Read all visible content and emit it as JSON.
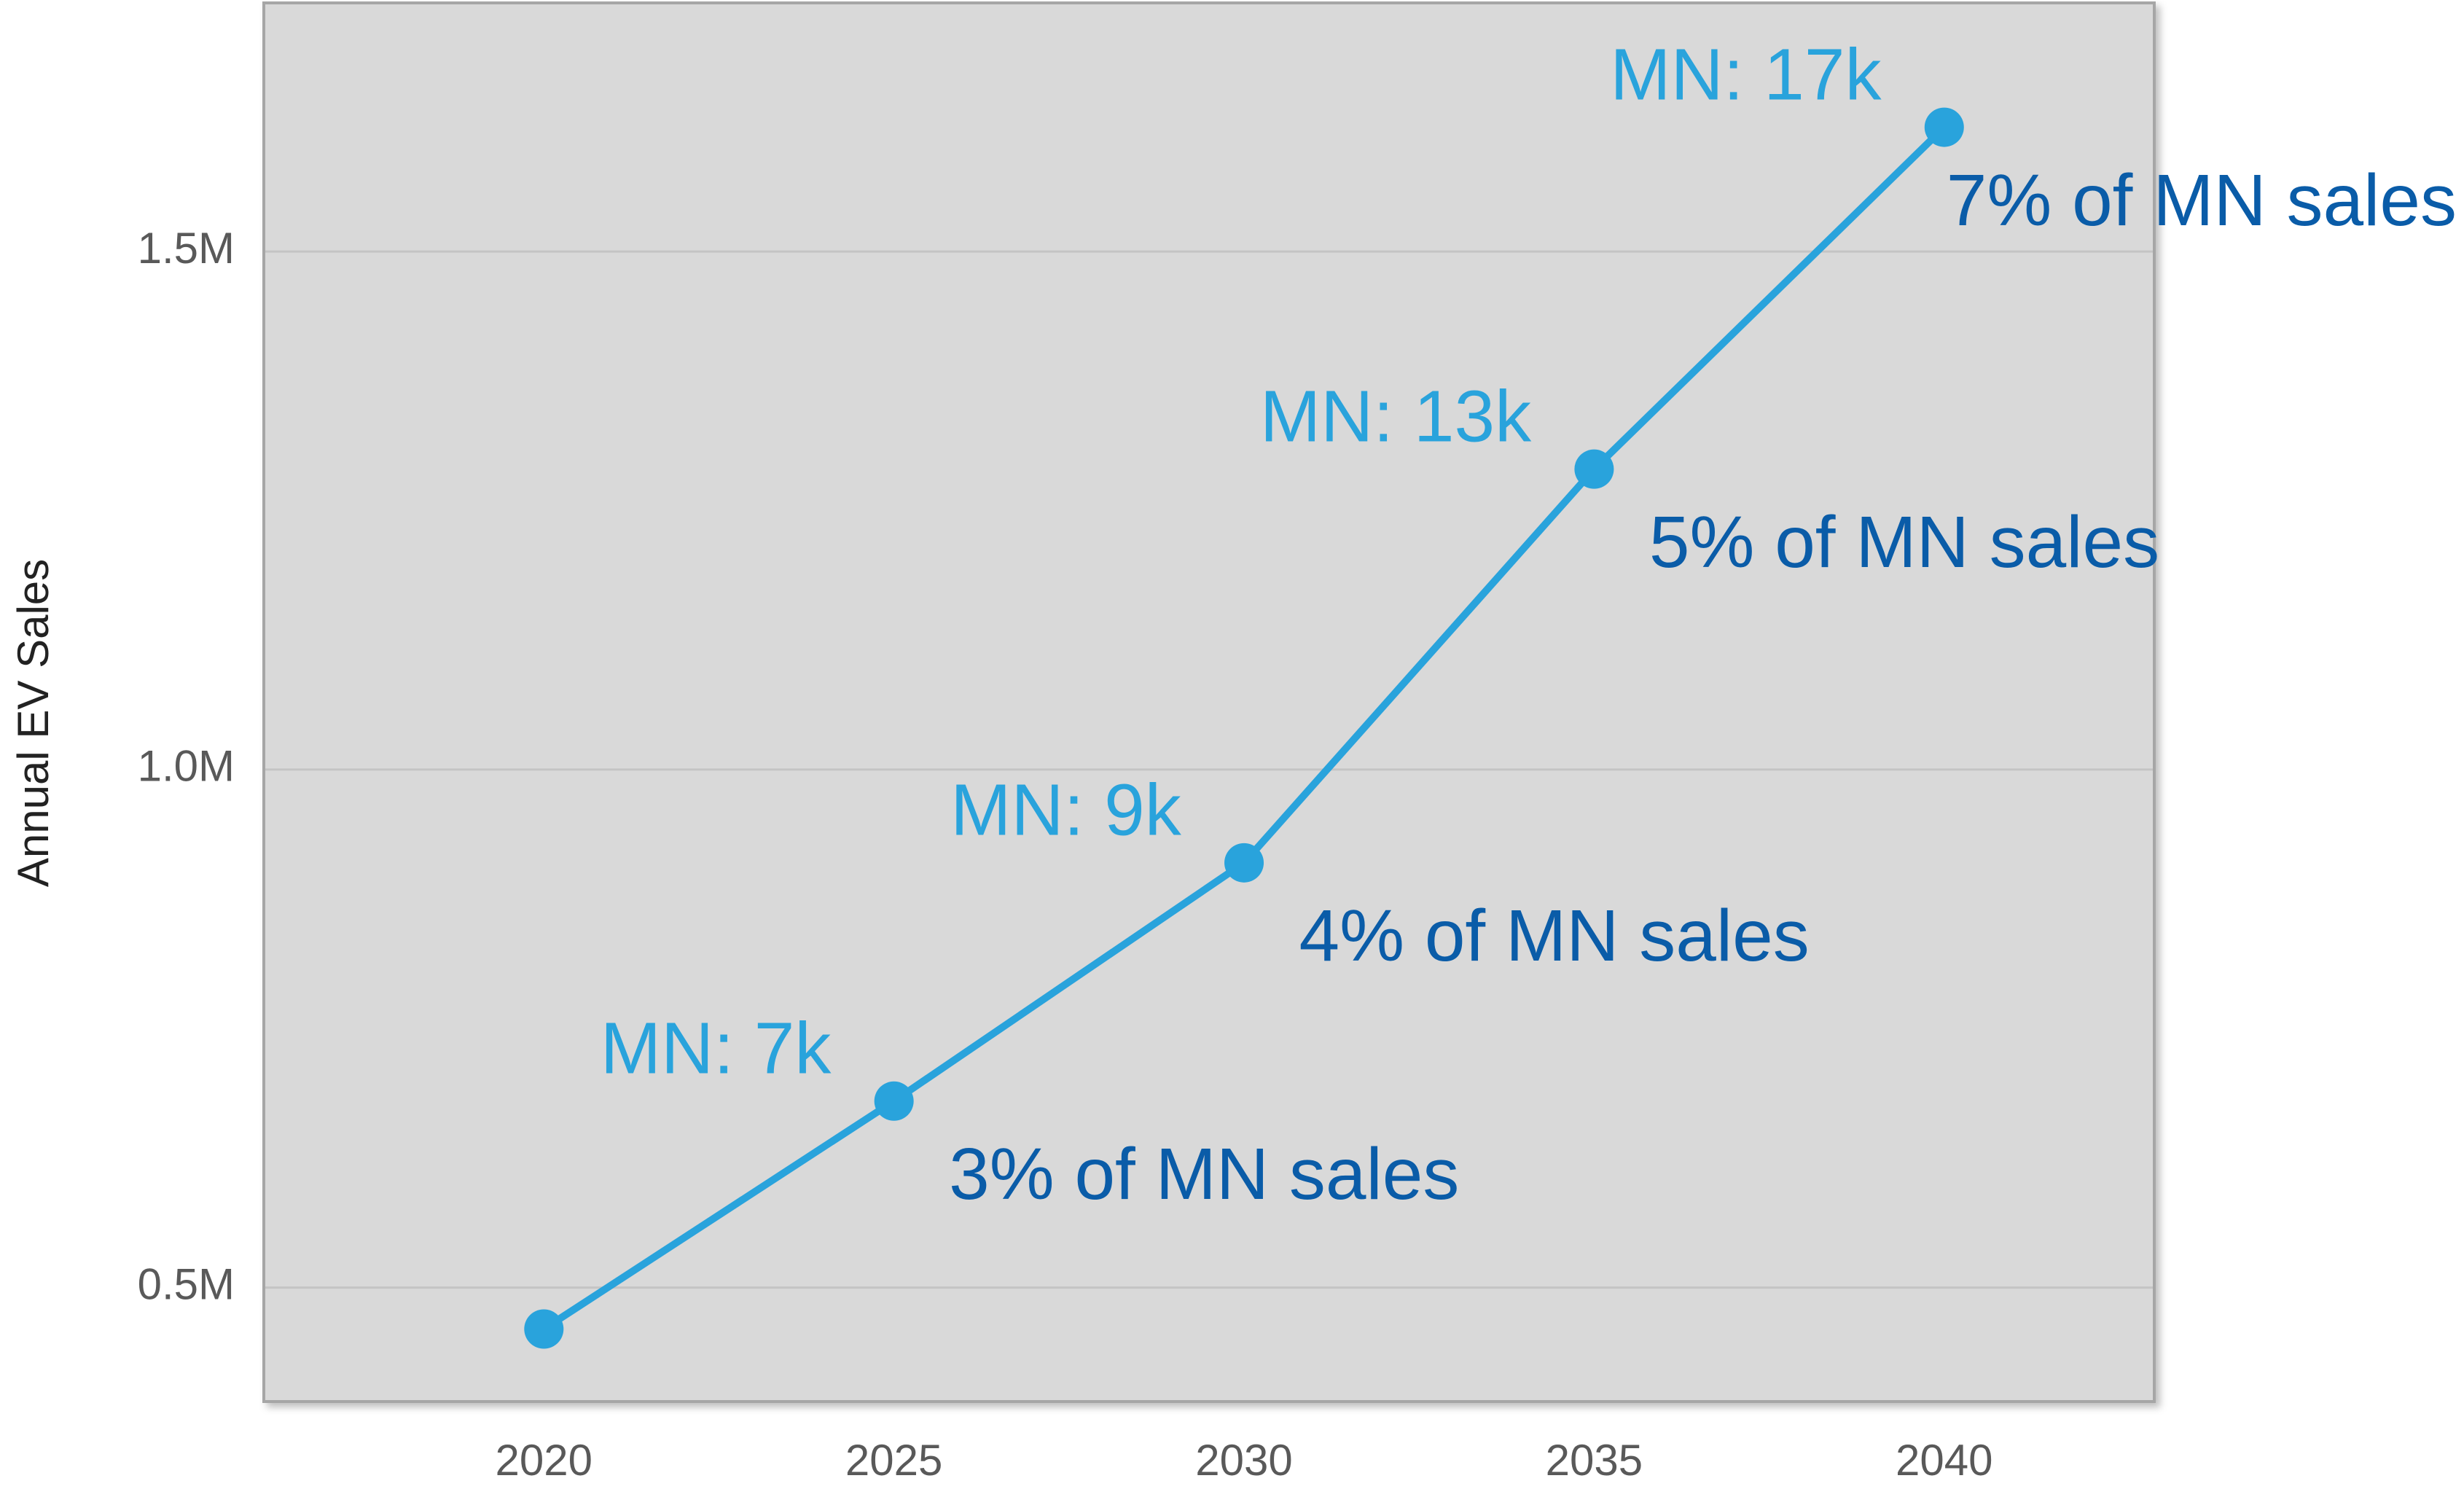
{
  "chart_data": {
    "type": "line",
    "y_axis_label": "Annual EV Sales",
    "x": [
      2020,
      2025,
      2030,
      2035,
      2040
    ],
    "series": [
      {
        "color": "#29a3dc",
        "values": [
          0.46,
          0.68,
          0.91,
          1.29,
          1.62
        ]
      }
    ],
    "mn_labels": [
      null,
      "MN: 7k",
      "MN: 9k",
      "MN: 13k",
      "MN: 17k"
    ],
    "share_labels": [
      null,
      "3% of MN sales",
      "4% of MN sales",
      "5% of MN sales",
      "7% of MN sales"
    ],
    "xlim": [
      2016,
      2043
    ],
    "xticks": [
      2020,
      2025,
      2030,
      2035,
      2040
    ],
    "ylim": [
      0.39,
      1.74
    ],
    "yticks": [
      {
        "value": 0.5,
        "label": "0.5M"
      },
      {
        "value": 1.0,
        "label": "1.0M"
      },
      {
        "value": 1.5,
        "label": "1.5M"
      }
    ],
    "grid": true
  }
}
